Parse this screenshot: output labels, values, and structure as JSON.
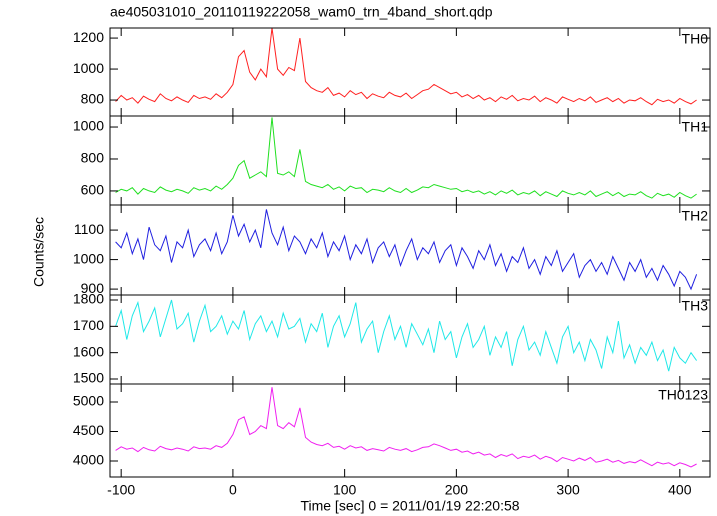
{
  "title": "ae405031010_20110119222058_wam0_trn_4band_short.qdp",
  "ylabel": "Counts/sec",
  "xlabel": "Time [sec] 0 = 2011/01/19 22:20:58",
  "chart_data": [
    {
      "type": "line",
      "x": [
        -105,
        -100,
        -95,
        -90,
        -85,
        -80,
        -75,
        -70,
        -65,
        -60,
        -55,
        -50,
        -45,
        -40,
        -35,
        -30,
        -25,
        -20,
        -15,
        -10,
        -5,
        0,
        5,
        10,
        15,
        20,
        25,
        30,
        35,
        40,
        45,
        50,
        55,
        60,
        65,
        70,
        75,
        80,
        85,
        90,
        95,
        100,
        105,
        110,
        115,
        120,
        125,
        130,
        135,
        140,
        145,
        150,
        155,
        160,
        165,
        170,
        175,
        180,
        185,
        190,
        195,
        200,
        205,
        210,
        215,
        220,
        225,
        230,
        235,
        240,
        245,
        250,
        255,
        260,
        265,
        270,
        275,
        280,
        285,
        290,
        295,
        300,
        305,
        310,
        315,
        320,
        325,
        330,
        335,
        340,
        345,
        350,
        355,
        360,
        365,
        370,
        375,
        380,
        385,
        390,
        395,
        400,
        405,
        410,
        415
      ],
      "series": [
        {
          "name": "TH0",
          "color": "#ff2020",
          "values": [
            790,
            830,
            800,
            815,
            780,
            825,
            805,
            790,
            840,
            810,
            795,
            820,
            800,
            785,
            830,
            810,
            820,
            805,
            840,
            815,
            850,
            900,
            1080,
            1120,
            980,
            930,
            1000,
            950,
            1265,
            1000,
            960,
            1010,
            990,
            1200,
            920,
            880,
            860,
            850,
            880,
            830,
            845,
            820,
            860,
            835,
            850,
            810,
            840,
            825,
            815,
            850,
            830,
            820,
            845,
            810,
            835,
            860,
            870,
            900,
            880,
            860,
            840,
            850,
            820,
            835,
            810,
            830,
            800,
            815,
            790,
            820,
            805,
            830,
            795,
            810,
            800,
            825,
            790,
            815,
            800,
            780,
            820,
            805,
            790,
            810,
            795,
            820,
            785,
            800,
            815,
            790,
            810,
            780,
            800,
            795,
            815,
            790,
            770,
            805,
            790,
            800,
            780,
            810,
            790,
            775,
            800
          ]
        }
      ],
      "xlim": [
        -110,
        427
      ],
      "xticks": [
        -100,
        0,
        100,
        200,
        300,
        400
      ],
      "ylim": [
        697,
        1265
      ],
      "yticks": [
        800,
        1000,
        1200
      ]
    },
    {
      "type": "line",
      "x": [
        -105,
        -100,
        -95,
        -90,
        -85,
        -80,
        -75,
        -70,
        -65,
        -60,
        -55,
        -50,
        -45,
        -40,
        -35,
        -30,
        -25,
        -20,
        -15,
        -10,
        -5,
        0,
        5,
        10,
        15,
        20,
        25,
        30,
        35,
        40,
        45,
        50,
        55,
        60,
        65,
        70,
        75,
        80,
        85,
        90,
        95,
        100,
        105,
        110,
        115,
        120,
        125,
        130,
        135,
        140,
        145,
        150,
        155,
        160,
        165,
        170,
        175,
        180,
        185,
        190,
        195,
        200,
        205,
        210,
        215,
        220,
        225,
        230,
        235,
        240,
        245,
        250,
        255,
        260,
        265,
        270,
        275,
        280,
        285,
        290,
        295,
        300,
        305,
        310,
        315,
        320,
        325,
        330,
        335,
        340,
        345,
        350,
        355,
        360,
        365,
        370,
        375,
        380,
        385,
        390,
        395,
        400,
        405,
        410,
        415
      ],
      "series": [
        {
          "name": "TH1",
          "color": "#20e020",
          "values": [
            590,
            610,
            600,
            620,
            580,
            615,
            600,
            590,
            625,
            605,
            595,
            610,
            600,
            585,
            620,
            605,
            615,
            600,
            630,
            610,
            640,
            680,
            760,
            790,
            680,
            700,
            720,
            690,
            1060,
            710,
            700,
            720,
            690,
            860,
            660,
            640,
            630,
            620,
            640,
            610,
            625,
            600,
            630,
            615,
            620,
            590,
            610,
            605,
            595,
            620,
            600,
            590,
            615,
            590,
            605,
            625,
            620,
            640,
            630,
            620,
            610,
            615,
            595,
            605,
            590,
            600,
            580,
            595,
            575,
            600,
            585,
            605,
            575,
            590,
            580,
            600,
            570,
            595,
            580,
            565,
            600,
            585,
            575,
            590,
            575,
            600,
            565,
            580,
            595,
            570,
            590,
            565,
            580,
            575,
            595,
            570,
            555,
            585,
            570,
            580,
            560,
            590,
            570,
            555,
            580
          ]
        }
      ],
      "xlim": [
        -110,
        427
      ],
      "xticks": [
        -100,
        0,
        100,
        200,
        300,
        400
      ],
      "ylim": [
        512,
        1069
      ],
      "yticks": [
        600,
        800,
        1000
      ]
    },
    {
      "type": "line",
      "x": [
        -105,
        -100,
        -95,
        -90,
        -85,
        -80,
        -75,
        -70,
        -65,
        -60,
        -55,
        -50,
        -45,
        -40,
        -35,
        -30,
        -25,
        -20,
        -15,
        -10,
        -5,
        0,
        5,
        10,
        15,
        20,
        25,
        30,
        35,
        40,
        45,
        50,
        55,
        60,
        65,
        70,
        75,
        80,
        85,
        90,
        95,
        100,
        105,
        110,
        115,
        120,
        125,
        130,
        135,
        140,
        145,
        150,
        155,
        160,
        165,
        170,
        175,
        180,
        185,
        190,
        195,
        200,
        205,
        210,
        215,
        220,
        225,
        230,
        235,
        240,
        245,
        250,
        255,
        260,
        265,
        270,
        275,
        280,
        285,
        290,
        295,
        300,
        305,
        310,
        315,
        320,
        325,
        330,
        335,
        340,
        345,
        350,
        355,
        360,
        365,
        370,
        375,
        380,
        385,
        390,
        395,
        400,
        405,
        410,
        415
      ],
      "series": [
        {
          "name": "TH2",
          "color": "#2020e0",
          "values": [
            1060,
            1040,
            1090,
            1020,
            1070,
            1000,
            1110,
            1050,
            1030,
            1080,
            990,
            1060,
            1040,
            1100,
            1010,
            1050,
            1070,
            1030,
            1090,
            1020,
            1060,
            1150,
            1080,
            1120,
            1060,
            1100,
            1040,
            1170,
            1090,
            1050,
            1110,
            1030,
            1080,
            1060,
            1020,
            1070,
            1040,
            1090,
            1010,
            1060,
            1030,
            1080,
            1000,
            1050,
            1020,
            1070,
            990,
            1040,
            1060,
            1010,
            1050,
            980,
            1030,
            1070,
            1000,
            1040,
            1020,
            1060,
            990,
            1030,
            1050,
            980,
            1040,
            1010,
            970,
            1030,
            1000,
            1050,
            980,
            1020,
            960,
            1010,
            990,
            1040,
            970,
            1000,
            950,
            1010,
            980,
            1030,
            960,
            990,
            1020,
            940,
            980,
            1000,
            960,
            990,
            950,
            1010,
            970,
            930,
            990,
            960,
            1000,
            940,
            970,
            930,
            980,
            950,
            910,
            960,
            940,
            900,
            950
          ]
        }
      ],
      "xlim": [
        -110,
        427
      ],
      "xticks": [
        -100,
        0,
        100,
        200,
        300,
        400
      ],
      "ylim": [
        880,
        1185
      ],
      "yticks": [
        900,
        1000,
        1100
      ]
    },
    {
      "type": "line",
      "x": [
        -105,
        -100,
        -95,
        -90,
        -85,
        -80,
        -75,
        -70,
        -65,
        -60,
        -55,
        -50,
        -45,
        -40,
        -35,
        -30,
        -25,
        -20,
        -15,
        -10,
        -5,
        0,
        5,
        10,
        15,
        20,
        25,
        30,
        35,
        40,
        45,
        50,
        55,
        60,
        65,
        70,
        75,
        80,
        85,
        90,
        95,
        100,
        105,
        110,
        115,
        120,
        125,
        130,
        135,
        140,
        145,
        150,
        155,
        160,
        165,
        170,
        175,
        180,
        185,
        190,
        195,
        200,
        205,
        210,
        215,
        220,
        225,
        230,
        235,
        240,
        245,
        250,
        255,
        260,
        265,
        270,
        275,
        280,
        285,
        290,
        295,
        300,
        305,
        310,
        315,
        320,
        325,
        330,
        335,
        340,
        345,
        350,
        355,
        360,
        365,
        370,
        375,
        380,
        385,
        390,
        395,
        400,
        405,
        410,
        415
      ],
      "series": [
        {
          "name": "TH3",
          "color": "#20e8e8",
          "values": [
            1700,
            1760,
            1650,
            1740,
            1790,
            1680,
            1720,
            1770,
            1660,
            1730,
            1800,
            1690,
            1710,
            1750,
            1640,
            1720,
            1780,
            1680,
            1700,
            1740,
            1670,
            1720,
            1690,
            1760,
            1650,
            1710,
            1740,
            1680,
            1720,
            1660,
            1750,
            1690,
            1700,
            1730,
            1640,
            1710,
            1680,
            1750,
            1620,
            1700,
            1740,
            1660,
            1710,
            1790,
            1640,
            1690,
            1720,
            1600,
            1680,
            1740,
            1650,
            1700,
            1620,
            1710,
            1670,
            1630,
            1690,
            1600,
            1720,
            1650,
            1680,
            1580,
            1660,
            1710,
            1620,
            1650,
            1700,
            1590,
            1660,
            1620,
            1680,
            1550,
            1650,
            1700,
            1610,
            1640,
            1590,
            1680,
            1620,
            1560,
            1660,
            1700,
            1600,
            1640,
            1570,
            1650,
            1610,
            1540,
            1660,
            1600,
            1720,
            1580,
            1630,
            1560,
            1620,
            1590,
            1640,
            1570,
            1610,
            1530,
            1620,
            1580,
            1560,
            1600,
            1570
          ]
        }
      ],
      "xlim": [
        -110,
        427
      ],
      "xticks": [
        -100,
        0,
        100,
        200,
        300,
        400
      ],
      "ylim": [
        1481,
        1819
      ],
      "yticks": [
        1500,
        1600,
        1700,
        1800
      ]
    },
    {
      "type": "line",
      "x": [
        -105,
        -100,
        -95,
        -90,
        -85,
        -80,
        -75,
        -70,
        -65,
        -60,
        -55,
        -50,
        -45,
        -40,
        -35,
        -30,
        -25,
        -20,
        -15,
        -10,
        -5,
        0,
        5,
        10,
        15,
        20,
        25,
        30,
        35,
        40,
        45,
        50,
        55,
        60,
        65,
        70,
        75,
        80,
        85,
        90,
        95,
        100,
        105,
        110,
        115,
        120,
        125,
        130,
        135,
        140,
        145,
        150,
        155,
        160,
        165,
        170,
        175,
        180,
        185,
        190,
        195,
        200,
        205,
        210,
        215,
        220,
        225,
        230,
        235,
        240,
        245,
        250,
        255,
        260,
        265,
        270,
        275,
        280,
        285,
        290,
        295,
        300,
        305,
        310,
        315,
        320,
        325,
        330,
        335,
        340,
        345,
        350,
        355,
        360,
        365,
        370,
        375,
        380,
        385,
        390,
        395,
        400,
        405,
        410,
        415
      ],
      "series": [
        {
          "name": "TH0123",
          "color": "#f020f0",
          "values": [
            4180,
            4240,
            4200,
            4220,
            4160,
            4230,
            4190,
            4170,
            4250,
            4210,
            4190,
            4220,
            4200,
            4170,
            4240,
            4210,
            4220,
            4200,
            4260,
            4230,
            4300,
            4450,
            4700,
            4750,
            4450,
            4500,
            4600,
            4550,
            5250,
            4600,
            4550,
            4650,
            4580,
            4900,
            4400,
            4320,
            4280,
            4260,
            4300,
            4230,
            4250,
            4200,
            4260,
            4220,
            4240,
            4180,
            4210,
            4190,
            4170,
            4230,
            4200,
            4180,
            4210,
            4160,
            4190,
            4230,
            4240,
            4290,
            4260,
            4220,
            4180,
            4200,
            4150,
            4170,
            4120,
            4150,
            4100,
            4120,
            4060,
            4110,
            4080,
            4120,
            4040,
            4080,
            4060,
            4100,
            4030,
            4080,
            4050,
            3990,
            4060,
            4030,
            4000,
            4050,
            4010,
            4060,
            3980,
            4000,
            4030,
            3980,
            4010,
            3960,
            3990,
            3970,
            4020,
            3970,
            3920,
            3980,
            3950,
            3970,
            3920,
            3970,
            3940,
            3900,
            3950
          ]
        }
      ],
      "xlim": [
        -110,
        427
      ],
      "xticks": [
        -100,
        0,
        100,
        200,
        300,
        400
      ],
      "ylim": [
        3729,
        5305
      ],
      "yticks": [
        4000,
        4500,
        5000
      ]
    }
  ]
}
